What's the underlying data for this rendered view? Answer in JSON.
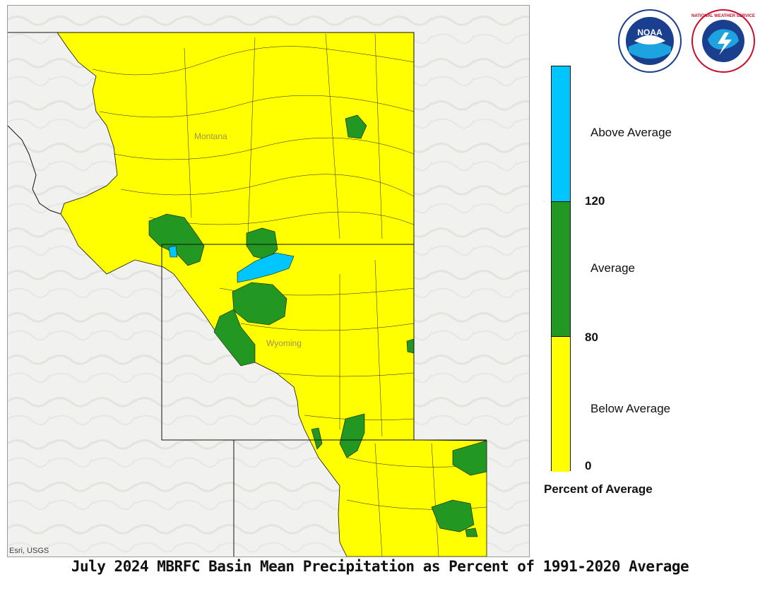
{
  "map": {
    "states": [
      {
        "name": "Montana"
      },
      {
        "name": "Wyoming"
      }
    ],
    "attribution": "Esri, USGS"
  },
  "legend": {
    "title": "Percent of Average",
    "categories": [
      {
        "label": "Above Average",
        "color": "#00c5ff"
      },
      {
        "label": "Average",
        "color": "#229822"
      },
      {
        "label": "Below Average",
        "color": "#ffff00"
      }
    ],
    "breaks": [
      "120",
      "80",
      "0"
    ]
  },
  "logos": [
    {
      "name": "noaa-logo",
      "text": "NOAA"
    },
    {
      "name": "nws-logo",
      "text": "NATIONAL WEATHER SERVICE"
    }
  ],
  "footer": {
    "title": "July 2024 MBRFC Basin Mean Precipitation as Percent of 1991-2020 Average"
  }
}
